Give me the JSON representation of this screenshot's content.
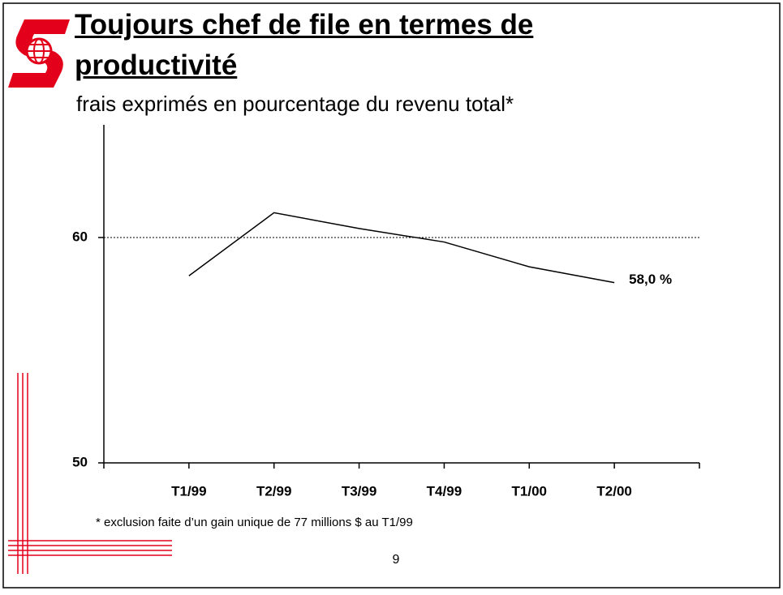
{
  "chart_data": {
    "type": "line",
    "title": "Toujours chef de file en termes de productivité",
    "subtitle": "frais exprimés en pourcentage du revenu total*",
    "categories": [
      "T1/99",
      "T2/99",
      "T3/99",
      "T4/99",
      "T1/00",
      "T2/00"
    ],
    "series": [
      {
        "name": "frais",
        "color": "#000000",
        "values": [
          58.3,
          61.1,
          60.4,
          59.8,
          58.7,
          58.0
        ],
        "value_labels": [
          null,
          null,
          null,
          null,
          null,
          "58,0 %"
        ]
      }
    ],
    "ylim": [
      50,
      65
    ],
    "yticks": [
      50,
      60
    ],
    "hline": 60,
    "footnote": "* exclusion faite d’un gain unique de 77 millions $ au T1/99",
    "page_number": "9"
  }
}
